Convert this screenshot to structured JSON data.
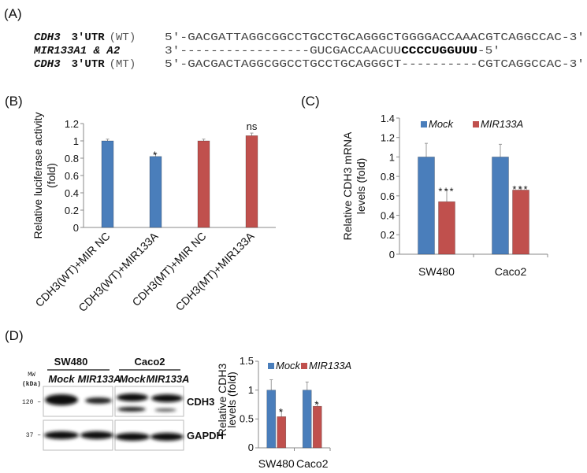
{
  "panel_labels": {
    "a": "(A)",
    "b": "(B)",
    "c": "(C)",
    "d": "(D)"
  },
  "sequences": {
    "wt": {
      "gene": "CDH3",
      "region": "3′UTR",
      "tag": "(WT)",
      "seq": "5′-GACGATTAGGCGGCCTGCCTGCAGGGCTGGGGACCAAACGTCAGGCCAC-3′"
    },
    "mir": {
      "name": "MIR133A1 & A2",
      "seq_prefix": "3′-----------------GUCGACCAACUU",
      "seed": "CCCCUGGUUU",
      "seq_suffix": "-5′"
    },
    "mt": {
      "gene": "CDH3",
      "region": "3′UTR",
      "tag": "(MT)",
      "seq": "5′-GACGACTAGGCGGCCTGCCTGCAGGGCT----------CGTCAGGCCAC-3′"
    }
  },
  "western_blot": {
    "cell_lines": [
      "SW480",
      "Caco2"
    ],
    "lanes": [
      "Mock",
      "MIR133A",
      "Mock",
      "MIR133A"
    ],
    "mw_label": "MW",
    "mw_unit": "(kDa)",
    "markers": [
      "120 –",
      "37 –"
    ],
    "proteins": [
      "CDH3",
      "GAPDH"
    ]
  },
  "colors": {
    "blue": "#4a7ebb",
    "red": "#c0504d"
  },
  "chart_data": [
    {
      "type": "bar",
      "panel": "B",
      "ylabel": [
        "Relative luciferase activity",
        "(fold)"
      ],
      "ylim": [
        0,
        1.2
      ],
      "yticks": [
        "0",
        "0.2",
        "0.4",
        "0.6",
        "0.8",
        "1",
        "1.2"
      ],
      "categories": [
        "CDH3(WT)+MIR NC",
        "CDH3(WT)+MIR133A",
        "CDH3(MT)+MIR NC",
        "CDH3(MT)+MIR133A"
      ],
      "values": [
        1.0,
        0.82,
        1.0,
        1.06
      ],
      "errors": [
        0.02,
        0.03,
        0.02,
        0.03
      ],
      "bar_colors": [
        "#4a7ebb",
        "#4a7ebb",
        "#c0504d",
        "#c0504d"
      ],
      "annotations": [
        "",
        "*",
        "",
        "ns"
      ]
    },
    {
      "type": "bar",
      "panel": "C",
      "ylabel": [
        "Relative CDH3 mRNA",
        "levels (fold)"
      ],
      "ylim": [
        0,
        1.4
      ],
      "yticks": [
        "0",
        "0.2",
        "0.4",
        "0.6",
        "0.8",
        "1",
        "1.2",
        "1.4"
      ],
      "categories": [
        "SW480",
        "Caco2"
      ],
      "legend": "top",
      "series": [
        {
          "name": "Mock",
          "color": "#4a7ebb",
          "values": [
            1.0,
            1.0
          ],
          "errors": [
            0.14,
            0.13
          ],
          "annotations": [
            "",
            ""
          ]
        },
        {
          "name": "MIR133A",
          "color": "#c0504d",
          "values": [
            0.54,
            0.66
          ],
          "errors": [
            0.12,
            0.02
          ],
          "annotations": [
            "***",
            "***"
          ]
        }
      ]
    },
    {
      "type": "bar",
      "panel": "D",
      "ylabel": [
        "Relative CDH3",
        "levels (fold)"
      ],
      "ylim": [
        0,
        1.5
      ],
      "yticks": [
        "0",
        "0.5",
        "1",
        "1.5"
      ],
      "categories": [
        "SW480",
        "Caco2"
      ],
      "legend": "top",
      "series": [
        {
          "name": "Mock",
          "color": "#4a7ebb",
          "values": [
            1.0,
            1.0
          ],
          "errors": [
            0.18,
            0.14
          ],
          "annotations": [
            "",
            ""
          ]
        },
        {
          "name": "MIR133A",
          "color": "#c0504d",
          "values": [
            0.54,
            0.72
          ],
          "errors": [
            0.1,
            0.05
          ],
          "annotations": [
            "*",
            "*"
          ]
        }
      ]
    }
  ]
}
